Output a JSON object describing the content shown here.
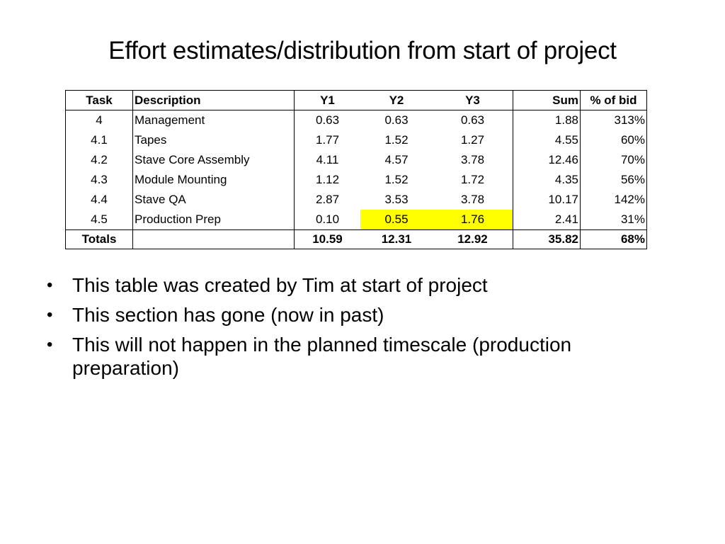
{
  "slide": {
    "title": "Effort estimates/distribution from start of project"
  },
  "table": {
    "headers": {
      "task": "Task",
      "description": "Description",
      "y1": "Y1",
      "y2": "Y2",
      "y3": "Y3",
      "sum": "Sum",
      "pct": "% of bid"
    },
    "rows": [
      {
        "task": "4",
        "description": "Management",
        "y1": "0.63",
        "y2": "0.63",
        "y3": "0.63",
        "sum": "1.88",
        "pct": "313%"
      },
      {
        "task": "4.1",
        "description": "Tapes",
        "y1": "1.77",
        "y2": "1.52",
        "y3": "1.27",
        "sum": "4.55",
        "pct": "60%"
      },
      {
        "task": "4.2",
        "description": "Stave Core Assembly",
        "y1": "4.11",
        "y2": "4.57",
        "y3": "3.78",
        "sum": "12.46",
        "pct": "70%"
      },
      {
        "task": "4.3",
        "description": "Module Mounting",
        "y1": "1.12",
        "y2": "1.52",
        "y3": "1.72",
        "sum": "4.35",
        "pct": "56%"
      },
      {
        "task": "4.4",
        "description": "Stave QA",
        "y1": "2.87",
        "y2": "3.53",
        "y3": "3.78",
        "sum": "10.17",
        "pct": "142%"
      },
      {
        "task": "4.5",
        "description": "Production Prep",
        "y1": "0.10",
        "y2": "0.55",
        "y3": "1.76",
        "sum": "2.41",
        "pct": "31%"
      }
    ],
    "totals": {
      "label": "Totals",
      "description": "",
      "y1": "10.59",
      "y2": "12.31",
      "y3": "12.92",
      "sum": "35.82",
      "pct": "68%"
    },
    "highlight_color": "#ffff00"
  },
  "bullets": {
    "items": [
      "This table was created by Tim at start of project",
      "This section has gone (now in past)",
      "This will not happen in the planned timescale (production preparation)"
    ]
  }
}
